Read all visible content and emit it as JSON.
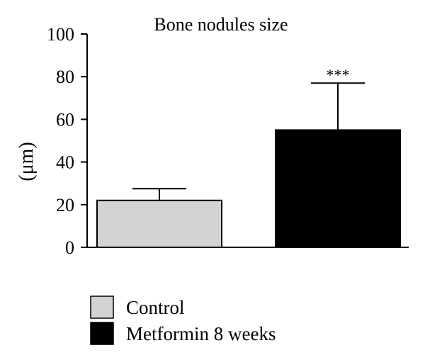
{
  "chart_data": {
    "type": "bar",
    "title": "Bone nodules size",
    "xlabel": "",
    "ylabel": "(μm)",
    "ylim": [
      0,
      100
    ],
    "yticks": [
      0,
      20,
      40,
      60,
      80,
      100
    ],
    "yticklabels": [
      "0",
      "20",
      "40",
      "60",
      "80",
      "100"
    ],
    "grid": false,
    "legend_position": "bottom-left",
    "categories": [
      "Control",
      "Metformin 8 weeks"
    ],
    "values": [
      22,
      55
    ],
    "errors": [
      5.5,
      22
    ],
    "colors": [
      "#d3d3d3",
      "#000000"
    ],
    "annotations": [
      "",
      "***"
    ]
  }
}
